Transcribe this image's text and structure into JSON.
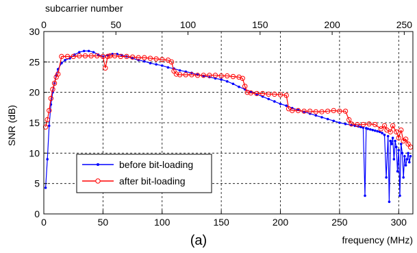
{
  "caption": "(a)",
  "chart_data": {
    "type": "line",
    "xlabel": "frequency (MHz)",
    "ylabel": "SNR (dB)",
    "x2label": "subcarrier number",
    "xlim": [
      0,
      312
    ],
    "ylim": [
      0,
      30
    ],
    "x2lim": [
      0,
      256
    ],
    "xticks": [
      0,
      50,
      100,
      150,
      200,
      250,
      300
    ],
    "yticks": [
      0,
      5,
      10,
      15,
      20,
      25,
      30
    ],
    "x2ticks": [
      0,
      50,
      100,
      150,
      200,
      250
    ],
    "grid": true,
    "legend_position": "bottom-left",
    "series": [
      {
        "name": "before bit-loading",
        "color": "#0000ff",
        "marker": "dot",
        "x": [
          1.5,
          3,
          4.5,
          6,
          7.5,
          9,
          10.5,
          12,
          15,
          18,
          22,
          26,
          30,
          34,
          38,
          42,
          46,
          50,
          54,
          58,
          62,
          66,
          70,
          75,
          80,
          85,
          90,
          95,
          100,
          105,
          110,
          115,
          120,
          125,
          130,
          135,
          140,
          145,
          150,
          155,
          160,
          165,
          170,
          175,
          180,
          185,
          190,
          195,
          200,
          205,
          210,
          215,
          220,
          225,
          230,
          235,
          240,
          245,
          250,
          255,
          260,
          263,
          266,
          268,
          270,
          271.5,
          272.5,
          274,
          276,
          278,
          280,
          282,
          284,
          286,
          288,
          289.5,
          291,
          292,
          293,
          294,
          295,
          296,
          297,
          298,
          299,
          300,
          301,
          302,
          303,
          304,
          305,
          306,
          307,
          308,
          309,
          310
        ],
        "y": [
          4.3,
          9,
          14.5,
          18,
          20,
          21.5,
          22.8,
          23.8,
          24.8,
          25.3,
          25.6,
          26.2,
          26.6,
          26.8,
          26.8,
          26.6,
          26.2,
          25.9,
          26.1,
          26.3,
          26.3,
          26.1,
          25.9,
          25.6,
          25.3,
          25.1,
          24.8,
          24.6,
          24.4,
          24.1,
          23.9,
          23.6,
          23.4,
          23.2,
          22.9,
          22.7,
          22.5,
          22.3,
          22.1,
          21.8,
          21.4,
          20.9,
          20.5,
          20.1,
          19.7,
          19.3,
          18.9,
          18.5,
          18.1,
          17.8,
          17.4,
          17.1,
          16.8,
          16.5,
          16.2,
          15.9,
          15.6,
          15.3,
          15.0,
          14.8,
          14.6,
          14.5,
          14.4,
          14.3,
          14.2,
          3,
          14.1,
          14.0,
          13.9,
          13.8,
          13.7,
          13.6,
          13.5,
          13.3,
          13.0,
          6,
          12.8,
          2,
          12.0,
          11.5,
          12.5,
          9,
          12.0,
          11.0,
          7,
          10.5,
          3,
          11.5,
          10,
          6,
          9.5,
          8,
          9,
          10,
          8.5,
          9.5
        ]
      },
      {
        "name": "after bit-loading",
        "color": "#ff0000",
        "marker": "circle",
        "x": [
          1.5,
          3,
          4.5,
          6,
          7.5,
          9,
          10.5,
          12,
          15,
          20,
          25,
          30,
          35,
          40,
          45,
          50,
          52,
          54,
          56,
          60,
          65,
          70,
          75,
          80,
          85,
          90,
          95,
          100,
          105,
          108,
          110,
          112,
          115,
          120,
          125,
          130,
          135,
          140,
          145,
          150,
          155,
          160,
          165,
          168,
          170,
          172,
          175,
          180,
          185,
          190,
          195,
          200,
          205,
          207,
          210,
          215,
          220,
          225,
          230,
          235,
          240,
          245,
          250,
          255,
          258,
          260,
          265,
          270,
          275,
          280,
          285,
          288,
          290,
          293,
          295,
          298,
          300,
          302,
          304,
          306,
          308,
          310
        ],
        "y": [
          14.3,
          15.5,
          17,
          19,
          20.5,
          21.5,
          22.5,
          23,
          25.9,
          25.9,
          25.9,
          26.0,
          26.0,
          26.0,
          26.0,
          25.9,
          24.0,
          25.9,
          26.0,
          26.0,
          25.9,
          25.9,
          25.8,
          25.7,
          25.7,
          25.6,
          25.5,
          25.4,
          25.3,
          25.0,
          23.5,
          23.0,
          22.9,
          22.9,
          22.9,
          22.8,
          22.8,
          22.8,
          22.8,
          22.7,
          22.7,
          22.6,
          22.5,
          22.3,
          21.0,
          20.0,
          19.9,
          19.8,
          19.8,
          19.7,
          19.7,
          19.6,
          19.5,
          17.3,
          17.0,
          17.0,
          16.9,
          16.9,
          16.8,
          16.8,
          16.9,
          17.0,
          16.9,
          16.9,
          15.5,
          14.8,
          14.7,
          14.7,
          14.8,
          14.7,
          14.0,
          14.5,
          13.8,
          13.5,
          14.5,
          13.5,
          12.5,
          13.8,
          12.0,
          12.3,
          11.5,
          11.0
        ]
      }
    ]
  }
}
